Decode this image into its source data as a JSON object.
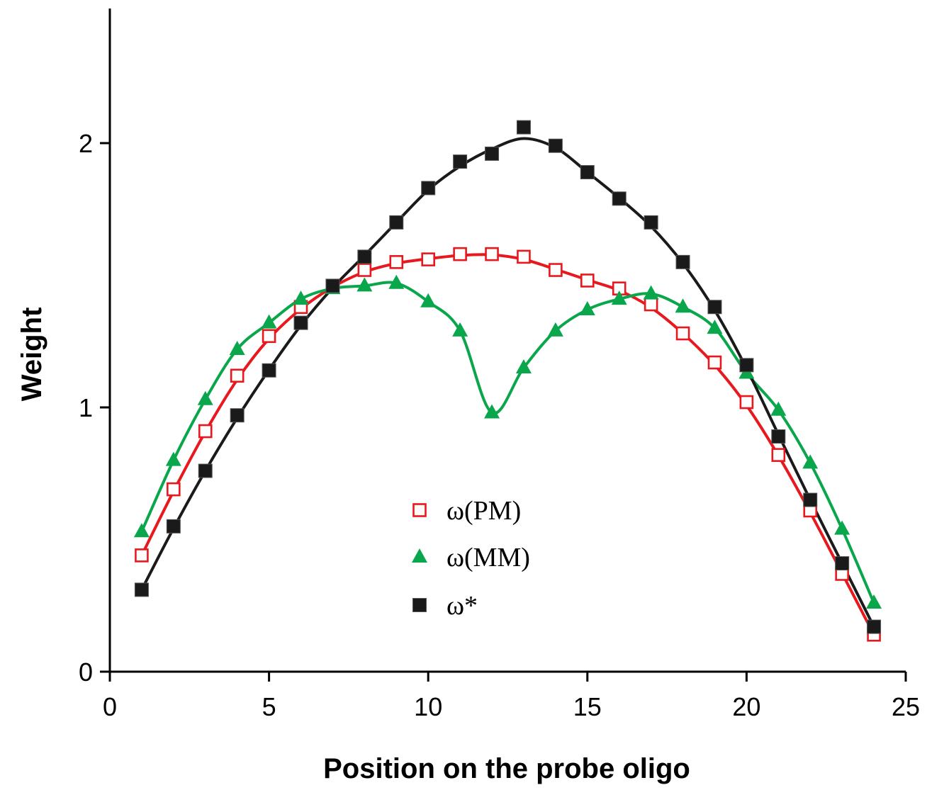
{
  "chart_data": {
    "type": "scatter",
    "title": "",
    "xlabel": "Position on the probe oligo",
    "ylabel": "Weight",
    "xlim": [
      0,
      25
    ],
    "ylim": [
      0,
      2
    ],
    "x_ticks": [
      "0",
      "5",
      "10",
      "15",
      "20",
      "25"
    ],
    "y_ticks": [
      "0",
      "1",
      "2"
    ],
    "grid": false,
    "legend_position": "center",
    "x": [
      1,
      2,
      3,
      4,
      5,
      6,
      7,
      8,
      9,
      10,
      11,
      12,
      13,
      14,
      15,
      16,
      17,
      18,
      19,
      20,
      21,
      22,
      23,
      24
    ],
    "series": [
      {
        "name": "ω(PM)",
        "marker": "open-square",
        "color": "#e8191e",
        "values": [
          0.44,
          0.69,
          0.91,
          1.12,
          1.27,
          1.38,
          1.46,
          1.52,
          1.55,
          1.56,
          1.58,
          1.58,
          1.57,
          1.52,
          1.48,
          1.45,
          1.39,
          1.28,
          1.17,
          1.02,
          0.82,
          0.61,
          0.37,
          0.14
        ]
      },
      {
        "name": "ω(MM)",
        "marker": "filled-triangle",
        "color": "#0aa64b",
        "values": [
          0.53,
          0.8,
          1.03,
          1.22,
          1.32,
          1.41,
          1.45,
          1.46,
          1.47,
          1.4,
          1.29,
          0.98,
          1.15,
          1.29,
          1.37,
          1.41,
          1.43,
          1.38,
          1.3,
          1.13,
          0.99,
          0.79,
          0.54,
          0.26
        ]
      },
      {
        "name": "ω*",
        "marker": "filled-square",
        "color": "#1a1a1a",
        "values": [
          0.31,
          0.55,
          0.76,
          0.97,
          1.14,
          1.32,
          1.46,
          1.57,
          1.7,
          1.83,
          1.93,
          1.96,
          2.06,
          1.99,
          1.89,
          1.79,
          1.7,
          1.55,
          1.38,
          1.16,
          0.89,
          0.65,
          0.41,
          0.17
        ]
      }
    ]
  }
}
